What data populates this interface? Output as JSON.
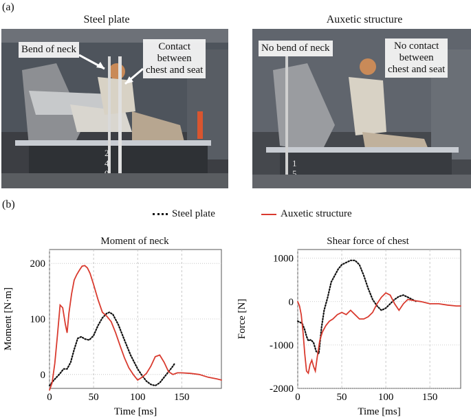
{
  "panel_a_label": "(a)",
  "panel_b_label": "(b)",
  "photos": {
    "left_title": "Steel plate",
    "right_title": "Auxetic structure",
    "left_callouts": [
      "Bend of neck",
      "Contact\nbetween\nchest and seat"
    ],
    "right_callouts": [
      "No bend of neck",
      "No contact\nbetween\nchest and seat"
    ]
  },
  "legend": {
    "steel": "Steel plate",
    "auxetic": "Auxetic structure",
    "steel_color": "#111111",
    "auxetic_color": "#d93a2e"
  },
  "chart_data": [
    {
      "type": "line",
      "title": "Moment of neck",
      "xlabel": "Time [ms]",
      "ylabel": "Moment [N·m]",
      "xlim": [
        0,
        195
      ],
      "ylim": [
        -25,
        225
      ],
      "xticks": [
        0,
        50,
        100,
        150
      ],
      "yticks": [
        0,
        100,
        200
      ],
      "xtick_labels": [
        "0",
        "50",
        "100",
        "150"
      ],
      "ytick_labels": [
        "0",
        "100",
        "200"
      ],
      "grid": true,
      "series": [
        {
          "name": "Steel plate",
          "style": "dotted",
          "x": [
            0,
            5,
            8,
            12,
            16,
            20,
            24,
            28,
            32,
            36,
            40,
            45,
            50,
            55,
            60,
            65,
            68,
            72,
            78,
            85,
            92,
            100,
            105,
            110,
            115,
            120,
            125,
            130,
            135,
            140,
            142
          ],
          "y": [
            -20,
            -10,
            -5,
            2,
            10,
            10,
            22,
            45,
            65,
            68,
            64,
            62,
            70,
            88,
            102,
            110,
            112,
            108,
            90,
            62,
            35,
            10,
            -2,
            -12,
            -18,
            -20,
            -15,
            -5,
            5,
            15,
            20
          ]
        },
        {
          "name": "Auxetic structure",
          "style": "solid",
          "x": [
            0,
            3,
            6,
            9,
            12,
            15,
            18,
            20,
            22,
            25,
            28,
            31,
            34,
            37,
            40,
            43,
            46,
            50,
            55,
            60,
            65,
            70,
            75,
            80,
            85,
            90,
            95,
            100,
            105,
            110,
            115,
            120,
            125,
            130,
            135,
            140,
            145,
            150,
            160,
            170,
            180,
            190,
            195
          ],
          "y": [
            -28,
            -15,
            20,
            70,
            125,
            120,
            90,
            75,
            110,
            145,
            170,
            180,
            188,
            195,
            196,
            192,
            182,
            162,
            135,
            112,
            105,
            95,
            75,
            52,
            30,
            12,
            0,
            -10,
            -5,
            2,
            15,
            32,
            35,
            22,
            5,
            0,
            3,
            3,
            2,
            0,
            -5,
            -8,
            -10
          ]
        }
      ]
    },
    {
      "type": "line",
      "title": "Shear force of chest",
      "xlabel": "Time [ms]",
      "ylabel": "Force [N]",
      "xlim": [
        0,
        185
      ],
      "ylim": [
        -2000,
        1200
      ],
      "xticks": [
        0,
        50,
        100,
        150
      ],
      "yticks": [
        -2000,
        -1000,
        0,
        1000
      ],
      "xtick_labels": [
        "0",
        "50",
        "100",
        "150"
      ],
      "ytick_labels": [
        "-2000",
        "-1000",
        "0",
        "1000"
      ],
      "grid": true,
      "series": [
        {
          "name": "Steel plate",
          "style": "dotted",
          "x": [
            0,
            3,
            5,
            8,
            10,
            12,
            15,
            18,
            21,
            24,
            27,
            30,
            34,
            38,
            42,
            46,
            50,
            55,
            60,
            65,
            70,
            75,
            80,
            85,
            90,
            95,
            100,
            105,
            110,
            115,
            120,
            125,
            130,
            135
          ],
          "y": [
            -450,
            -480,
            -500,
            -650,
            -800,
            -900,
            -880,
            -950,
            -1150,
            -1200,
            -600,
            -200,
            100,
            450,
            600,
            750,
            850,
            900,
            950,
            950,
            850,
            600,
            300,
            50,
            -100,
            -200,
            -150,
            -50,
            50,
            120,
            150,
            100,
            50,
            0
          ]
        },
        {
          "name": "Auxetic structure",
          "style": "solid",
          "x": [
            0,
            2,
            4,
            6,
            8,
            10,
            12,
            14,
            16,
            18,
            20,
            22,
            25,
            28,
            32,
            36,
            40,
            45,
            50,
            55,
            60,
            65,
            70,
            75,
            80,
            85,
            90,
            95,
            100,
            105,
            110,
            115,
            120,
            125,
            130,
            140,
            150,
            160,
            170,
            180,
            185
          ],
          "y": [
            0,
            -100,
            -300,
            -700,
            -1200,
            -1600,
            -1650,
            -1450,
            -1350,
            -1500,
            -1600,
            -1300,
            -900,
            -700,
            -550,
            -450,
            -400,
            -300,
            -250,
            -300,
            -200,
            -300,
            -400,
            -400,
            -350,
            -250,
            -50,
            100,
            200,
            150,
            -50,
            -200,
            -50,
            50,
            30,
            0,
            -50,
            -50,
            -80,
            -100,
            -100
          ]
        }
      ]
    }
  ]
}
